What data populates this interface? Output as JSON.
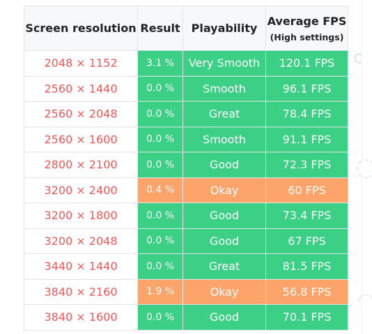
{
  "table": {
    "headers": {
      "resolution": "Screen resolution",
      "result": "Result",
      "playability": "Playability",
      "avg_fps": "Average FPS",
      "avg_fps_sub": "(High settings)"
    },
    "rows": [
      {
        "resolution": "2048 × 1152",
        "result": "3.1 %",
        "playability": "Very Smooth",
        "fps": "120.1 FPS",
        "status": "green"
      },
      {
        "resolution": "2560 × 1440",
        "result": "0.0 %",
        "playability": "Smooth",
        "fps": "96.1 FPS",
        "status": "green"
      },
      {
        "resolution": "2560 × 2048",
        "result": "0.0 %",
        "playability": "Great",
        "fps": "78.4 FPS",
        "status": "green"
      },
      {
        "resolution": "2560 × 1600",
        "result": "0.0 %",
        "playability": "Smooth",
        "fps": "91.1 FPS",
        "status": "green"
      },
      {
        "resolution": "2800 × 2100",
        "result": "0.0 %",
        "playability": "Good",
        "fps": "72.3 FPS",
        "status": "green"
      },
      {
        "resolution": "3200 × 2400",
        "result": "0.4 %",
        "playability": "Okay",
        "fps": "60 FPS",
        "status": "orange"
      },
      {
        "resolution": "3200 × 1800",
        "result": "0.0 %",
        "playability": "Good",
        "fps": "73.4 FPS",
        "status": "green"
      },
      {
        "resolution": "3200 × 2048",
        "result": "0.0 %",
        "playability": "Good",
        "fps": "67 FPS",
        "status": "green"
      },
      {
        "resolution": "3440 × 1440",
        "result": "0.0 %",
        "playability": "Great",
        "fps": "81.5 FPS",
        "status": "green"
      },
      {
        "resolution": "3840 × 2160",
        "result": "1.9 %",
        "playability": "Okay",
        "fps": "56.8 FPS",
        "status": "orange"
      },
      {
        "resolution": "3840 × 1600",
        "result": "0.0 %",
        "playability": "Good",
        "fps": "70.1 FPS",
        "status": "green"
      }
    ]
  },
  "colors": {
    "good": "#3ccf86",
    "okay": "#fda46a",
    "resolution_text": "#ee5a5a",
    "header_bg": "#f6f8fa"
  },
  "icons": {
    "background_marks": [
      "decorative-c-icon",
      "decorative-swirl-icon",
      "decorative-arc-icon"
    ]
  }
}
